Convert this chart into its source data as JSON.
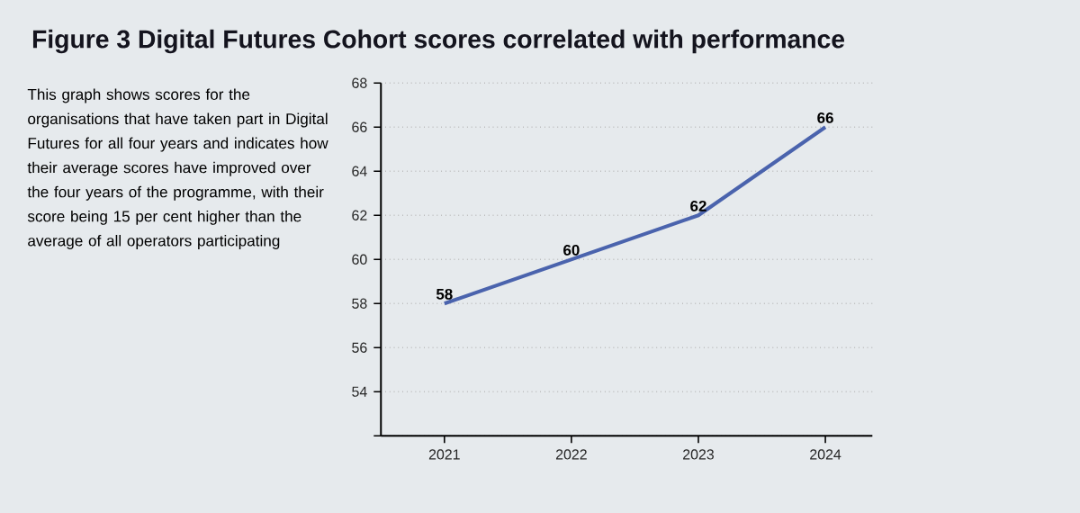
{
  "chart_data": {
    "type": "line",
    "title": "Figure 3 Digital Futures Cohort scores correlated with performance",
    "annotations": [
      "This graph shows scores for the organisations that have taken part in Digital Futures for all four years and indicates how their average scores have improved over the four years of the programme, with their score being 15 per cent higher than the average of all operators participating"
    ],
    "categories": [
      "2021",
      "2022",
      "2023",
      "2024"
    ],
    "series": [
      {
        "color": "#4a63ad",
        "values": [
          58,
          60,
          62,
          66
        ]
      }
    ],
    "ylim": [
      52,
      68
    ],
    "yticks": [
      {
        "value": 52,
        "label": null
      },
      54,
      56,
      58,
      60,
      62,
      64,
      66,
      68
    ],
    "grid": "y",
    "data_labels": true,
    "marker": "none",
    "line_style": "solid"
  }
}
